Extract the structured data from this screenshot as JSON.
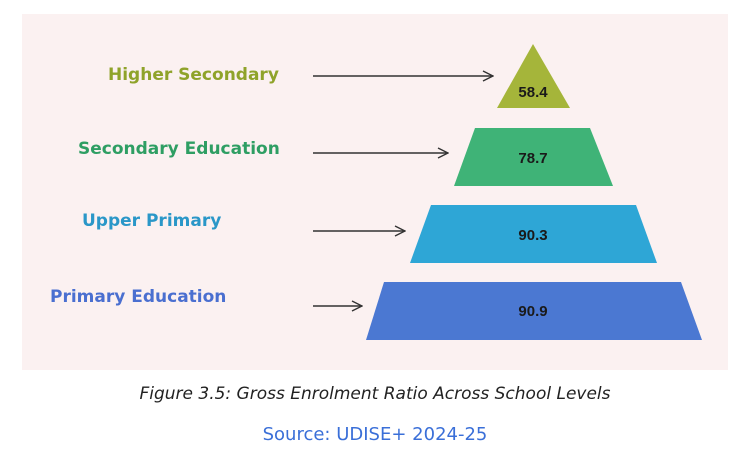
{
  "levels": [
    {
      "label": "Higher Secondary",
      "value": "58.4",
      "color": "#a5b53a",
      "text_color": "#8fa32a"
    },
    {
      "label": "Secondary Education",
      "value": "78.7",
      "color": "#3fb377",
      "text_color": "#2e9e63"
    },
    {
      "label": "Upper Primary",
      "value": "90.3",
      "color": "#2ea6d6",
      "text_color": "#2a97c8"
    },
    {
      "label": "Primary Education",
      "value": "90.9",
      "color": "#4b78d2",
      "text_color": "#4a6fd0"
    }
  ],
  "caption": "Figure 3.5: Gross Enrolment Ratio Across School Levels",
  "source": "Source: UDISE+ 2024-25",
  "source_color": "#3a6fd8"
}
